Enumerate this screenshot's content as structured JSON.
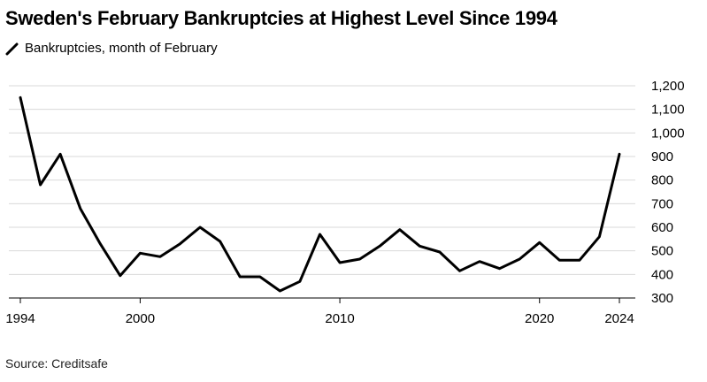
{
  "chart_data": {
    "type": "line",
    "title": "Sweden's February Bankruptcies at Highest Level Since 1994",
    "series": [
      {
        "name": "Bankruptcies, month of February",
        "color": "#000000",
        "x": [
          1994,
          1995,
          1996,
          1997,
          1998,
          1999,
          2000,
          2001,
          2002,
          2003,
          2004,
          2005,
          2006,
          2007,
          2008,
          2009,
          2010,
          2011,
          2012,
          2013,
          2014,
          2015,
          2016,
          2017,
          2018,
          2019,
          2020,
          2021,
          2022,
          2023,
          2024
        ],
        "values": [
          1150,
          780,
          910,
          680,
          530,
          395,
          490,
          475,
          530,
          600,
          540,
          390,
          390,
          330,
          370,
          570,
          450,
          465,
          520,
          590,
          520,
          495,
          415,
          455,
          425,
          465,
          535,
          460,
          460,
          560,
          910
        ]
      }
    ],
    "x_ticks": [
      "1994",
      "2000",
      "2010",
      "2020",
      "2024"
    ],
    "y_ticks": [
      "1,200",
      "1,100",
      "1,000",
      "900",
      "800",
      "700",
      "600",
      "500",
      "400",
      "300"
    ],
    "xlim": [
      1994,
      2024
    ],
    "ylim": [
      300,
      1200
    ],
    "grid": "horizontal",
    "y_axis_side": "right",
    "legend_position": "top-left"
  },
  "source": "Source: Creditsafe"
}
